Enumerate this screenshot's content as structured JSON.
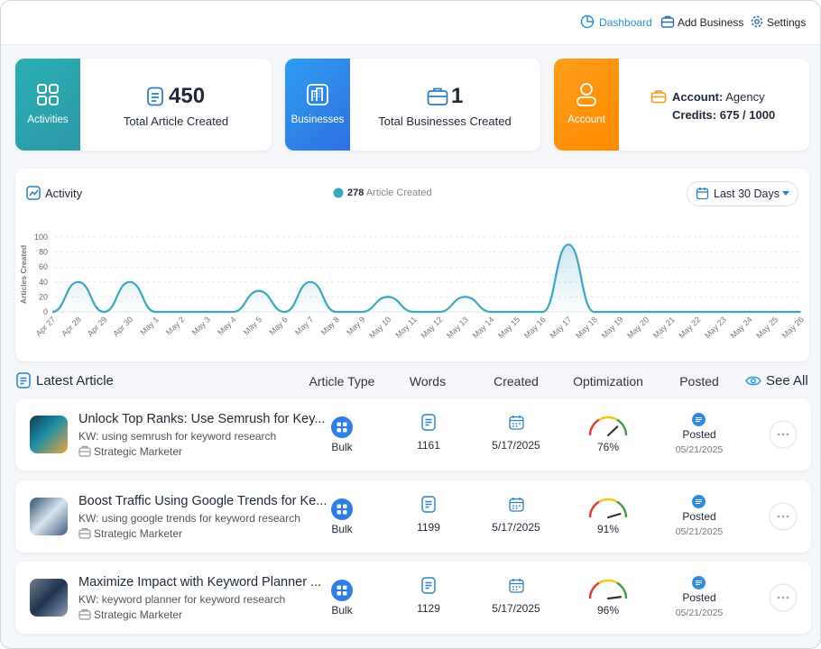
{
  "nav": [
    "Dashboard",
    "Add Business",
    "Settings"
  ],
  "stats": [
    {
      "tile": "Activities",
      "value": 450,
      "label": "Total Article Created"
    },
    {
      "tile": "Businesses",
      "value": 1,
      "label": "Total Businesses Created"
    },
    {
      "tile": "Account",
      "account_label": "Account:",
      "account": "Agency",
      "credits_label": "Credits:",
      "credits": "675 / 1000"
    }
  ],
  "activity": {
    "title": "Activity",
    "total": 278,
    "total_label": "Article Created",
    "range": "Last 30 Days",
    "y_label": "Articles Created",
    "categories": [
      "Apr 27",
      "Apr 28",
      "Apr 29",
      "Apr 30",
      "May 1",
      "May 2",
      "May 3",
      "May 4",
      "May 5",
      "May 6",
      "May 7",
      "May 8",
      "May 9",
      "May 10",
      "May 11",
      "May 12",
      "May 13",
      "May 14",
      "May 15",
      "May 16",
      "May 17",
      "May 18",
      "May 19",
      "May 20",
      "May 21",
      "May 22",
      "May 23",
      "May 24",
      "May 25",
      "May 26"
    ],
    "values": [
      0,
      40,
      0,
      40,
      0,
      0,
      0,
      0,
      28,
      0,
      40,
      0,
      0,
      20,
      0,
      0,
      20,
      0,
      0,
      0,
      90,
      0,
      0,
      0,
      0,
      0,
      0,
      0,
      0,
      0
    ],
    "ylim": [
      0,
      100
    ],
    "yticks": [
      0,
      20,
      40,
      60,
      80,
      100
    ],
    "color": "#3aa6c2",
    "grid": true
  },
  "latest": {
    "title": "Latest Article",
    "columns": [
      "Article Type",
      "Words",
      "Created",
      "Optimization",
      "Posted"
    ],
    "see_all": "See All",
    "rows": [
      {
        "title": "Unlock Top Ranks: Use Semrush for Key...",
        "kw": "KW: using semrush for keyword research",
        "business": "Strategic Marketer",
        "type": "Bulk",
        "words": 1161,
        "created": "5/17/2025",
        "optimization": {
          "value": 76,
          "label": "76%"
        },
        "status": "Posted",
        "posted": "05/21/2025"
      },
      {
        "title": "Boost Traffic Using Google Trends for Ke...",
        "kw": "KW: using google trends for keyword research",
        "business": "Strategic Marketer",
        "type": "Bulk",
        "words": 1199,
        "created": "5/17/2025",
        "optimization": {
          "value": 91,
          "label": "91%"
        },
        "status": "Posted",
        "posted": "05/21/2025"
      },
      {
        "title": "Maximize Impact with Keyword Planner ...",
        "kw": "KW: keyword planner for keyword research",
        "business": "Strategic Marketer",
        "type": "Bulk",
        "words": 1129,
        "created": "5/17/2025",
        "optimization": {
          "value": 96,
          "label": "96%"
        },
        "status": "Posted",
        "posted": "05/21/2025"
      }
    ]
  }
}
